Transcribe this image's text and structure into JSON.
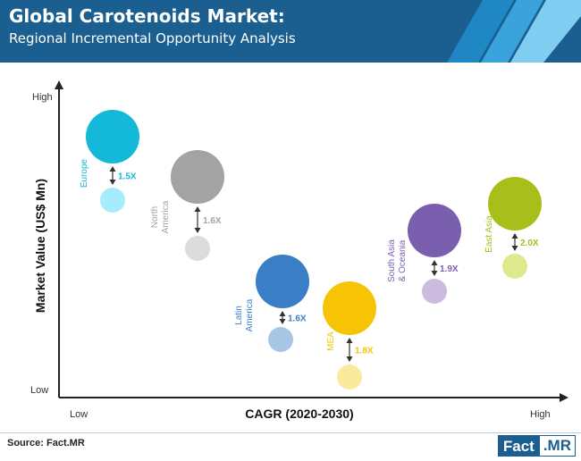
{
  "header": {
    "title": "Global Carotenoids Market:",
    "subtitle": "Regional Incremental Opportunity Analysis"
  },
  "chart_data": {
    "type": "scatter",
    "xlabel": "CAGR (2020-2030)",
    "ylabel": "Market Value (US$ Mn)",
    "x_ticks": {
      "low": "Low",
      "high": "High"
    },
    "y_ticks": {
      "low": "Low",
      "high": "High"
    },
    "regions": [
      {
        "label_lines": [
          "Europe"
        ],
        "multiplier": "1.5X",
        "color": "#14b8d8",
        "light": "#a6ecfb"
      },
      {
        "label_lines": [
          "North",
          "America"
        ],
        "multiplier": "1.6X",
        "color": "#a3a3a3",
        "light": "#dcdcdc"
      },
      {
        "label_lines": [
          "Latin",
          "America"
        ],
        "multiplier": "1.6X",
        "color": "#3a7fc6",
        "light": "#a7c6e6"
      },
      {
        "label_lines": [
          "MEA"
        ],
        "multiplier": "1.8X",
        "color": "#f6c405",
        "light": "#faea9e"
      },
      {
        "label_lines": [
          "South Asia",
          "& Oceania"
        ],
        "multiplier": "1.9X",
        "color": "#7a5fae",
        "light": "#cbbcdf"
      },
      {
        "label_lines": [
          "East Asia"
        ],
        "multiplier": "2.0X",
        "color": "#a8bf1b",
        "light": "#dfe88d"
      }
    ]
  },
  "footer": {
    "source": "Source: Fact.MR",
    "logo_left": "Fact",
    "logo_right": ".MR"
  }
}
